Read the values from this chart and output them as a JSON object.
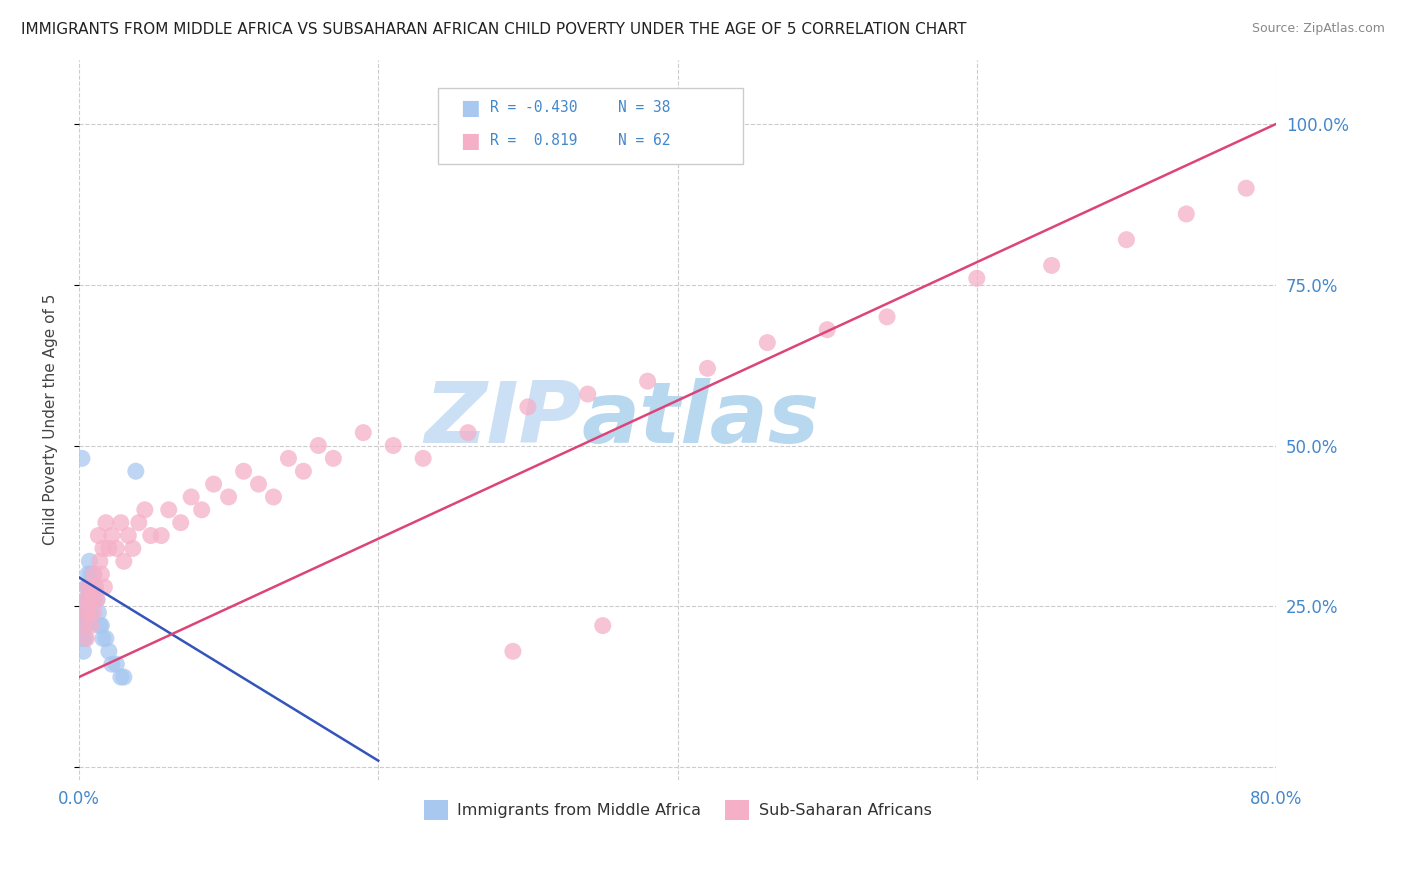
{
  "title": "IMMIGRANTS FROM MIDDLE AFRICA VS SUBSAHARAN AFRICAN CHILD POVERTY UNDER THE AGE OF 5 CORRELATION CHART",
  "source": "Source: ZipAtlas.com",
  "ylabel": "Child Poverty Under the Age of 5",
  "ytick_labels": [
    "",
    "25.0%",
    "50.0%",
    "75.0%",
    "100.0%"
  ],
  "ytick_values": [
    0.0,
    0.25,
    0.5,
    0.75,
    1.0
  ],
  "xlim": [
    0.0,
    0.8
  ],
  "ylim": [
    -0.02,
    1.1
  ],
  "blue_R": "-0.430",
  "blue_N": "38",
  "pink_R": "0.819",
  "pink_N": "62",
  "legend_label_blue": "Immigrants from Middle Africa",
  "legend_label_pink": "Sub-Saharan Africans",
  "watermark_zip": "ZIP",
  "watermark_atlas": "atlas",
  "blue_color": "#a8c8f0",
  "pink_color": "#f5b0c8",
  "blue_line_color": "#3355bb",
  "pink_line_color": "#dd4477",
  "grid_color": "#cccccc",
  "bg_color": "#ffffff",
  "title_color": "#222222",
  "axis_label_color": "#4488cc",
  "watermark_color": "#cce0f5",
  "blue_points_x": [
    0.002,
    0.003,
    0.003,
    0.004,
    0.004,
    0.004,
    0.005,
    0.005,
    0.005,
    0.005,
    0.006,
    0.006,
    0.006,
    0.006,
    0.007,
    0.007,
    0.007,
    0.008,
    0.008,
    0.008,
    0.009,
    0.009,
    0.01,
    0.01,
    0.011,
    0.012,
    0.013,
    0.014,
    0.015,
    0.016,
    0.018,
    0.02,
    0.022,
    0.025,
    0.028,
    0.03,
    0.038,
    0.002
  ],
  "blue_points_y": [
    0.22,
    0.2,
    0.18,
    0.24,
    0.22,
    0.2,
    0.28,
    0.26,
    0.24,
    0.22,
    0.3,
    0.28,
    0.26,
    0.24,
    0.32,
    0.28,
    0.26,
    0.3,
    0.28,
    0.24,
    0.28,
    0.26,
    0.3,
    0.26,
    0.28,
    0.26,
    0.24,
    0.22,
    0.22,
    0.2,
    0.2,
    0.18,
    0.16,
    0.16,
    0.14,
    0.14,
    0.46,
    0.48
  ],
  "pink_points_x": [
    0.003,
    0.004,
    0.005,
    0.005,
    0.006,
    0.006,
    0.007,
    0.008,
    0.008,
    0.009,
    0.01,
    0.01,
    0.011,
    0.012,
    0.013,
    0.014,
    0.015,
    0.016,
    0.017,
    0.018,
    0.02,
    0.022,
    0.025,
    0.028,
    0.03,
    0.033,
    0.036,
    0.04,
    0.044,
    0.048,
    0.055,
    0.06,
    0.068,
    0.075,
    0.082,
    0.09,
    0.1,
    0.11,
    0.12,
    0.13,
    0.14,
    0.15,
    0.16,
    0.17,
    0.19,
    0.21,
    0.23,
    0.26,
    0.3,
    0.34,
    0.38,
    0.42,
    0.46,
    0.5,
    0.54,
    0.6,
    0.65,
    0.7,
    0.74,
    0.78,
    0.35,
    0.29
  ],
  "pink_points_y": [
    0.22,
    0.26,
    0.2,
    0.24,
    0.28,
    0.24,
    0.26,
    0.22,
    0.28,
    0.26,
    0.24,
    0.3,
    0.28,
    0.26,
    0.36,
    0.32,
    0.3,
    0.34,
    0.28,
    0.38,
    0.34,
    0.36,
    0.34,
    0.38,
    0.32,
    0.36,
    0.34,
    0.38,
    0.4,
    0.36,
    0.36,
    0.4,
    0.38,
    0.42,
    0.4,
    0.44,
    0.42,
    0.46,
    0.44,
    0.42,
    0.48,
    0.46,
    0.5,
    0.48,
    0.52,
    0.5,
    0.48,
    0.52,
    0.56,
    0.58,
    0.6,
    0.62,
    0.66,
    0.68,
    0.7,
    0.76,
    0.78,
    0.82,
    0.86,
    0.9,
    0.22,
    0.18
  ],
  "blue_trend_x0": 0.0,
  "blue_trend_y0": 0.295,
  "blue_trend_x1": 0.2,
  "blue_trend_y1": 0.01,
  "pink_trend_x0": 0.0,
  "pink_trend_y0": 0.14,
  "pink_trend_x1": 0.8,
  "pink_trend_y1": 1.0
}
